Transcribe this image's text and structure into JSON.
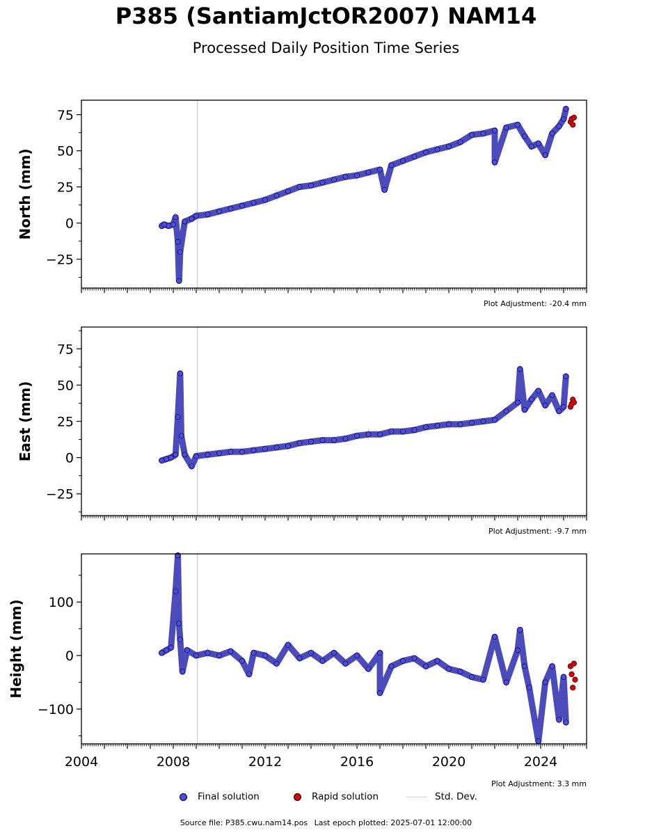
{
  "title": "P385 (SantiamJctOR2007) NAM14",
  "subtitle": "Processed Daily Position Time Series",
  "legend": {
    "final": "Final solution",
    "rapid": "Rapid solution",
    "std": "Std. Dev."
  },
  "source": {
    "file": "Source file: P385.cwu.nam14.pos",
    "last_epoch": "Last epoch plotted: 2025-07-01 12:00:00"
  },
  "colors": {
    "final": "#4b4bf0",
    "rapid": "#e00000",
    "std": "#d3d3d3",
    "marker_edge": "#000000"
  },
  "chart_data": [
    {
      "type": "scatter",
      "ylabel": "North (mm)",
      "ylim": [
        -45,
        85
      ],
      "yticks": [
        -25,
        0,
        25,
        50,
        75
      ],
      "yticklabels": [
        "−25",
        "0",
        "25",
        "50",
        "75"
      ],
      "xlim": [
        2004.0,
        2026.0
      ],
      "xticks": [],
      "adjustment": "Plot Adjustment: -20.4 mm",
      "vertical_line_x": 2009.05,
      "final": [
        [
          2007.5,
          -2
        ],
        [
          2007.6,
          -1
        ],
        [
          2007.8,
          -2
        ],
        [
          2008.0,
          -1
        ],
        [
          2008.1,
          4
        ],
        [
          2008.2,
          -13
        ],
        [
          2008.25,
          -40
        ],
        [
          2008.3,
          -20
        ],
        [
          2008.5,
          1
        ],
        [
          2008.8,
          3
        ],
        [
          2009.0,
          5
        ],
        [
          2009.5,
          6
        ],
        [
          2010.0,
          8
        ],
        [
          2010.5,
          10
        ],
        [
          2011.0,
          12
        ],
        [
          2011.5,
          14
        ],
        [
          2012.0,
          16
        ],
        [
          2012.5,
          19
        ],
        [
          2013.0,
          22
        ],
        [
          2013.5,
          25
        ],
        [
          2014.0,
          26
        ],
        [
          2014.5,
          28
        ],
        [
          2015.0,
          30
        ],
        [
          2015.5,
          32
        ],
        [
          2016.0,
          33
        ],
        [
          2016.5,
          35
        ],
        [
          2017.0,
          37
        ],
        [
          2017.2,
          23
        ],
        [
          2017.5,
          40
        ],
        [
          2018.0,
          43
        ],
        [
          2018.5,
          46
        ],
        [
          2019.0,
          49
        ],
        [
          2019.5,
          51
        ],
        [
          2020.0,
          53
        ],
        [
          2020.5,
          56
        ],
        [
          2021.0,
          61
        ],
        [
          2021.5,
          62
        ],
        [
          2022.0,
          64
        ],
        [
          2022.0,
          42
        ],
        [
          2022.5,
          66
        ],
        [
          2023.0,
          68
        ],
        [
          2023.3,
          60
        ],
        [
          2023.6,
          53
        ],
        [
          2023.9,
          55
        ],
        [
          2024.2,
          47
        ],
        [
          2024.5,
          62
        ],
        [
          2024.8,
          67
        ],
        [
          2025.0,
          72
        ],
        [
          2025.1,
          79
        ]
      ],
      "rapid": [
        [
          2025.3,
          70
        ],
        [
          2025.35,
          72
        ],
        [
          2025.4,
          68
        ],
        [
          2025.45,
          73
        ]
      ]
    },
    {
      "type": "scatter",
      "ylabel": "East (mm)",
      "ylim": [
        -40,
        90
      ],
      "yticks": [
        -25,
        0,
        25,
        50,
        75
      ],
      "yticklabels": [
        "−25",
        "0",
        "25",
        "50",
        "75"
      ],
      "xlim": [
        2004.0,
        2026.0
      ],
      "xticks": [],
      "adjustment": "Plot Adjustment: -9.7 mm",
      "vertical_line_x": 2009.05,
      "final": [
        [
          2007.5,
          -2
        ],
        [
          2007.7,
          -1
        ],
        [
          2007.9,
          0
        ],
        [
          2008.1,
          2
        ],
        [
          2008.2,
          28
        ],
        [
          2008.3,
          58
        ],
        [
          2008.35,
          15
        ],
        [
          2008.5,
          2
        ],
        [
          2008.8,
          -6
        ],
        [
          2009.0,
          1
        ],
        [
          2009.5,
          2
        ],
        [
          2010.0,
          3
        ],
        [
          2010.5,
          4
        ],
        [
          2011.0,
          4
        ],
        [
          2011.5,
          5
        ],
        [
          2012.0,
          6
        ],
        [
          2012.5,
          7
        ],
        [
          2013.0,
          8
        ],
        [
          2013.5,
          10
        ],
        [
          2014.0,
          11
        ],
        [
          2014.5,
          12
        ],
        [
          2015.0,
          12
        ],
        [
          2015.5,
          13
        ],
        [
          2016.0,
          15
        ],
        [
          2016.5,
          16
        ],
        [
          2017.0,
          16
        ],
        [
          2017.5,
          18
        ],
        [
          2018.0,
          18
        ],
        [
          2018.5,
          19
        ],
        [
          2019.0,
          21
        ],
        [
          2019.5,
          22
        ],
        [
          2020.0,
          23
        ],
        [
          2020.5,
          23
        ],
        [
          2021.0,
          24
        ],
        [
          2021.5,
          25
        ],
        [
          2022.0,
          26
        ],
        [
          2022.5,
          32
        ],
        [
          2023.0,
          38
        ],
        [
          2023.1,
          61
        ],
        [
          2023.3,
          33
        ],
        [
          2023.6,
          40
        ],
        [
          2023.9,
          46
        ],
        [
          2024.2,
          36
        ],
        [
          2024.5,
          43
        ],
        [
          2024.8,
          32
        ],
        [
          2025.0,
          35
        ],
        [
          2025.1,
          56
        ]
      ],
      "rapid": [
        [
          2025.3,
          35
        ],
        [
          2025.35,
          37
        ],
        [
          2025.4,
          40
        ],
        [
          2025.45,
          38
        ]
      ]
    },
    {
      "type": "scatter",
      "ylabel": "Height (mm)",
      "ylim": [
        -165,
        190
      ],
      "yticks": [
        -100,
        0,
        100
      ],
      "yticklabels": [
        "−100",
        "0",
        "100"
      ],
      "xlim": [
        2004.0,
        2026.0
      ],
      "xticks": [
        2004,
        2008,
        2012,
        2016,
        2020,
        2024
      ],
      "adjustment": "Plot Adjustment: 3.3 mm",
      "vertical_line_x": 2009.05,
      "final": [
        [
          2007.5,
          5
        ],
        [
          2007.7,
          10
        ],
        [
          2007.9,
          15
        ],
        [
          2008.1,
          120
        ],
        [
          2008.2,
          187
        ],
        [
          2008.25,
          60
        ],
        [
          2008.3,
          30
        ],
        [
          2008.4,
          -30
        ],
        [
          2008.6,
          10
        ],
        [
          2009.0,
          0
        ],
        [
          2009.5,
          5
        ],
        [
          2010.0,
          0
        ],
        [
          2010.5,
          8
        ],
        [
          2011.0,
          -10
        ],
        [
          2011.3,
          -35
        ],
        [
          2011.5,
          5
        ],
        [
          2012.0,
          0
        ],
        [
          2012.5,
          -15
        ],
        [
          2013.0,
          20
        ],
        [
          2013.5,
          -5
        ],
        [
          2014.0,
          5
        ],
        [
          2014.5,
          -10
        ],
        [
          2015.0,
          5
        ],
        [
          2015.5,
          -15
        ],
        [
          2016.0,
          0
        ],
        [
          2016.5,
          -25
        ],
        [
          2017.0,
          5
        ],
        [
          2017.0,
          -70
        ],
        [
          2017.5,
          -20
        ],
        [
          2018.0,
          -10
        ],
        [
          2018.5,
          -5
        ],
        [
          2019.0,
          -20
        ],
        [
          2019.5,
          -10
        ],
        [
          2020.0,
          -25
        ],
        [
          2020.5,
          -30
        ],
        [
          2021.0,
          -40
        ],
        [
          2021.5,
          -45
        ],
        [
          2022.0,
          35
        ],
        [
          2022.5,
          -50
        ],
        [
          2023.0,
          10
        ],
        [
          2023.1,
          48
        ],
        [
          2023.3,
          -20
        ],
        [
          2023.5,
          -60
        ],
        [
          2023.9,
          -160
        ],
        [
          2024.2,
          -50
        ],
        [
          2024.5,
          -20
        ],
        [
          2024.8,
          -120
        ],
        [
          2025.0,
          -40
        ],
        [
          2025.1,
          -125
        ]
      ],
      "rapid": [
        [
          2025.3,
          -20
        ],
        [
          2025.35,
          -35
        ],
        [
          2025.4,
          -60
        ],
        [
          2025.45,
          -15
        ],
        [
          2025.5,
          -45
        ]
      ]
    }
  ]
}
